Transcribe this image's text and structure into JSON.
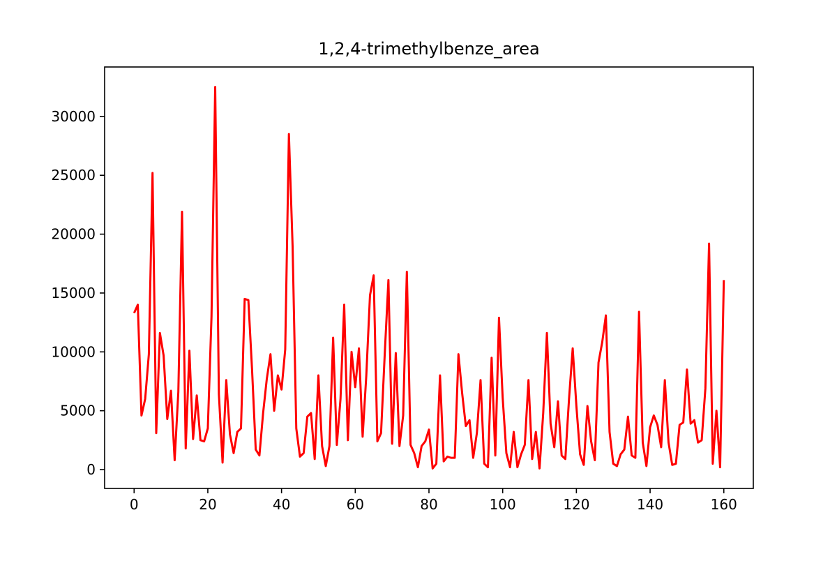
{
  "chart_data": {
    "type": "line",
    "title": "1,2,4-trimethylbenze_area",
    "xlabel": "",
    "ylabel": "",
    "xlim": [
      -8,
      168
    ],
    "ylim": [
      -1600,
      34200
    ],
    "x_ticks": [
      0,
      20,
      40,
      60,
      80,
      100,
      120,
      140,
      160
    ],
    "y_ticks": [
      0,
      5000,
      10000,
      15000,
      20000,
      25000,
      30000
    ],
    "grid": false,
    "legend": "none",
    "series": [
      {
        "color": "#ff0000",
        "x_start": 0,
        "x_step": 1,
        "values": [
          13300,
          14000,
          4600,
          6000,
          9800,
          25200,
          3100,
          11600,
          9700,
          4300,
          6700,
          800,
          6600,
          21900,
          1800,
          10100,
          2600,
          6300,
          2500,
          2400,
          3500,
          13000,
          32500,
          6400,
          600,
          7600,
          3000,
          1400,
          3200,
          3500,
          14500,
          14400,
          8500,
          1700,
          1200,
          4800,
          7700,
          9800,
          5000,
          8000,
          6800,
          10200,
          28500,
          19000,
          3500,
          1100,
          1400,
          4500,
          4800,
          900,
          8000,
          2000,
          300,
          2000,
          11200,
          2100,
          6000,
          14000,
          2500,
          10000,
          7000,
          10300,
          2800,
          8000,
          14800,
          16500,
          2400,
          3100,
          9800,
          16100,
          2200,
          9900,
          2000,
          4600,
          16800,
          2100,
          1400,
          200,
          2000,
          2400,
          3400,
          100,
          500,
          8000,
          700,
          1100,
          1000,
          1000,
          9800,
          6500,
          3700,
          4200,
          1000,
          3100,
          7600,
          500,
          200,
          9500,
          1200,
          12900,
          6100,
          1400,
          200,
          3200,
          200,
          1300,
          2100,
          7600,
          900,
          3200,
          100,
          4800,
          11600,
          3900,
          1900,
          5800,
          1200,
          900,
          6000,
          10300,
          5400,
          1300,
          400,
          5400,
          2400,
          800,
          9100,
          10800,
          13100,
          3200,
          500,
          300,
          1300,
          1700,
          4500,
          1200,
          1000,
          13400,
          2300,
          300,
          3600,
          4600,
          3800,
          1900,
          7600,
          2300,
          400,
          500,
          3800,
          4000,
          8500,
          3900,
          4200,
          2300,
          2500,
          6900,
          19200,
          500,
          5000,
          200,
          16100
        ]
      }
    ]
  }
}
